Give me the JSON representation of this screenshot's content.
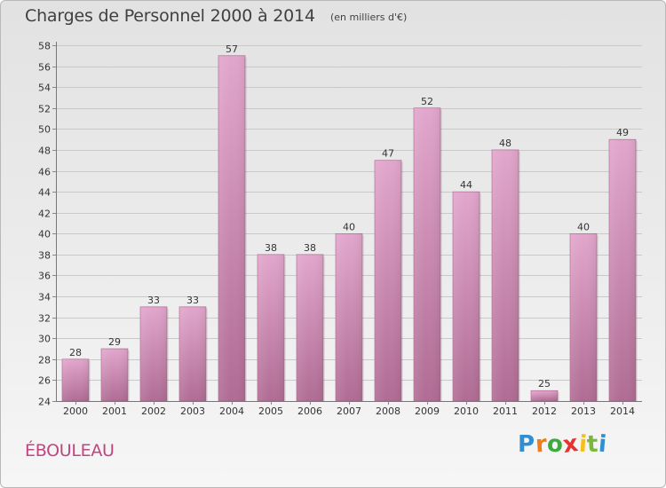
{
  "header": {
    "title": "Charges de Personnel 2000 à 2014",
    "subtitle": "(en milliers d'€)"
  },
  "footer": {
    "commune": "ÉBOULEAU",
    "logo_text": "Proxiti"
  },
  "colors": {
    "bar_light": "#e2a6cc",
    "bar_dark": "#b06c94",
    "bar_edge": "#a35d88",
    "commune_text": "#c0457e",
    "logo_letters": [
      "#2f8fd0",
      "#ef7d1a",
      "#3daa3d",
      "#e7332f",
      "#f4c01b",
      "#7bb83a",
      "#2f8fd0"
    ]
  },
  "chart_data": {
    "type": "bar",
    "title": "Charges de Personnel 2000 à 2014",
    "subtitle": "(en milliers d'€)",
    "xlabel": "",
    "ylabel": "",
    "categories": [
      "2000",
      "2001",
      "2002",
      "2003",
      "2004",
      "2005",
      "2006",
      "2007",
      "2008",
      "2009",
      "2010",
      "2011",
      "2012",
      "2013",
      "2014"
    ],
    "values": [
      28,
      29,
      33,
      33,
      57,
      38,
      38,
      40,
      47,
      52,
      44,
      48,
      25,
      40,
      49
    ],
    "ylim": [
      24,
      58
    ],
    "yticks": [
      24,
      26,
      28,
      30,
      32,
      34,
      36,
      38,
      40,
      42,
      44,
      46,
      48,
      50,
      52,
      54,
      56,
      58
    ],
    "grid": true,
    "legend": "none"
  }
}
